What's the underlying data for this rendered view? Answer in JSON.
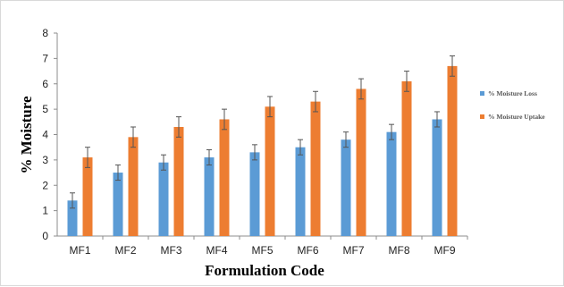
{
  "chart_data": {
    "type": "bar",
    "title": "",
    "xlabel": "Formulation Code",
    "ylabel": "% Moisture",
    "ylim": [
      0,
      8
    ],
    "yticks": [
      0,
      1,
      2,
      3,
      4,
      5,
      6,
      7,
      8
    ],
    "grid": false,
    "legend_position": "right",
    "categories": [
      "MF1",
      "MF2",
      "MF3",
      "MF4",
      "MF5",
      "MF6",
      "MF7",
      "MF8",
      "MF9"
    ],
    "series": [
      {
        "name": "% Moisture Loss",
        "color": "#5b9bd5",
        "values": [
          1.4,
          2.5,
          2.9,
          3.1,
          3.3,
          3.5,
          3.8,
          4.1,
          4.6
        ],
        "error": [
          0.3,
          0.3,
          0.3,
          0.3,
          0.3,
          0.3,
          0.3,
          0.3,
          0.3
        ]
      },
      {
        "name": "% Moisture Uptake",
        "color": "#ed7d31",
        "values": [
          3.1,
          3.9,
          4.3,
          4.6,
          5.1,
          5.3,
          5.8,
          6.1,
          6.7
        ],
        "error": [
          0.4,
          0.4,
          0.4,
          0.4,
          0.4,
          0.4,
          0.4,
          0.4,
          0.4
        ]
      }
    ]
  }
}
